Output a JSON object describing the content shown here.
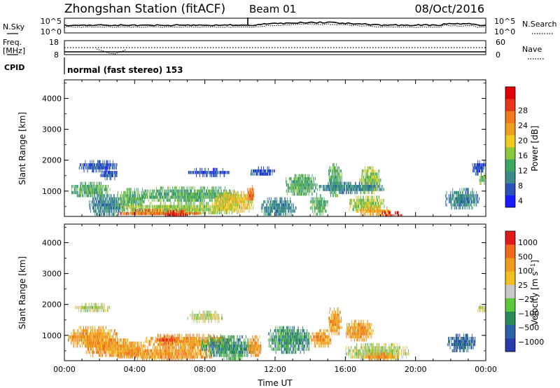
{
  "header": {
    "station": "Zhongshan Station (fitACF)",
    "beam": "Beam 01",
    "date": "08/Oct/2016"
  },
  "nsky_panel": {
    "label": "N.Sky",
    "ticks_left": [
      "10^5",
      "10^0"
    ],
    "ticks_right": [
      "10^5",
      "10^0"
    ],
    "right_label": "N.Search"
  },
  "freq_panel": {
    "label_top": "Freq.",
    "label_unit": "[MHz]",
    "ticks_left": [
      "18",
      "8"
    ],
    "ticks_right": [
      "60",
      "0"
    ],
    "right_label": "Nave"
  },
  "cpid_panel": {
    "label": "CPID",
    "mode_text": "normal (fast stereo) 153"
  },
  "chart_data": [
    {
      "type": "heatmap",
      "name": "power",
      "ylabel": "Slant Range [km]",
      "yticks": [
        1000,
        2000,
        3000,
        4000
      ],
      "ylim": [
        180,
        4600
      ],
      "xlim": [
        0,
        24
      ],
      "colorbar": {
        "label": "Power [dB]",
        "ticks": [
          "4",
          "8",
          "12",
          "16",
          "20",
          "24",
          "28"
        ],
        "colors": [
          "#1a1aff",
          "#2a52b8",
          "#3b8a8a",
          "#3aa860",
          "#8cc83c",
          "#f0cc20",
          "#f0a020",
          "#f07a1a",
          "#e8361a",
          "#e00000"
        ]
      },
      "regions": [
        {
          "t": [
            0.8,
            3.0
          ],
          "r": [
            1700,
            2000
          ],
          "level": 1
        },
        {
          "t": [
            2.0,
            3.0
          ],
          "r": [
            1450,
            1750
          ],
          "level": 1
        },
        {
          "t": [
            0.4,
            2.6
          ],
          "r": [
            850,
            1300
          ],
          "level": 3
        },
        {
          "t": [
            1.4,
            3.4
          ],
          "r": [
            250,
            900
          ],
          "level": 2
        },
        {
          "t": [
            3.0,
            4.6
          ],
          "r": [
            500,
            1100
          ],
          "level": 3
        },
        {
          "t": [
            3.2,
            10.0
          ],
          "r": [
            280,
            650
          ],
          "level": 4
        },
        {
          "t": [
            3.0,
            7.8
          ],
          "r": [
            250,
            420
          ],
          "level": 7
        },
        {
          "t": [
            5.6,
            7.0
          ],
          "r": [
            250,
            380
          ],
          "level": 9
        },
        {
          "t": [
            4.4,
            9.8
          ],
          "r": [
            700,
            1150
          ],
          "level": 3
        },
        {
          "t": [
            8.4,
            10.8
          ],
          "r": [
            400,
            1000
          ],
          "level": 5
        },
        {
          "t": [
            10.4,
            10.8
          ],
          "r": [
            700,
            1200
          ],
          "level": 7
        },
        {
          "t": [
            7.0,
            9.4
          ],
          "r": [
            1550,
            1750
          ],
          "level": 1
        },
        {
          "t": [
            10.6,
            12.0
          ],
          "r": [
            1550,
            1800
          ],
          "level": 1
        },
        {
          "t": [
            11.2,
            13.2
          ],
          "r": [
            250,
            800
          ],
          "level": 2
        },
        {
          "t": [
            12.6,
            14.4
          ],
          "r": [
            900,
            1550
          ],
          "level": 3
        },
        {
          "t": [
            14.0,
            15.0
          ],
          "r": [
            300,
            900
          ],
          "level": 3
        },
        {
          "t": [
            15.0,
            15.8
          ],
          "r": [
            900,
            1900
          ],
          "level": 3
        },
        {
          "t": [
            16.8,
            18.0
          ],
          "r": [
            1000,
            1800
          ],
          "level": 4
        },
        {
          "t": [
            14.4,
            18.2
          ],
          "r": [
            1000,
            1300
          ],
          "level": 2
        },
        {
          "t": [
            16.2,
            18.2
          ],
          "r": [
            380,
            850
          ],
          "level": 4
        },
        {
          "t": [
            16.6,
            18.6
          ],
          "r": [
            280,
            500
          ],
          "level": 6
        },
        {
          "t": [
            17.6,
            19.6
          ],
          "r": [
            250,
            350
          ],
          "level": 9
        },
        {
          "t": [
            21.7,
            23.6
          ],
          "r": [
            500,
            1100
          ],
          "level": 2
        },
        {
          "t": [
            23.2,
            24.0
          ],
          "r": [
            1600,
            2000
          ],
          "level": 1
        },
        {
          "t": [
            23.6,
            24.0
          ],
          "r": [
            1300,
            1600
          ],
          "level": 4
        }
      ]
    },
    {
      "type": "heatmap",
      "name": "velocity",
      "ylabel": "Slant Range [km]",
      "yticks": [
        1000,
        2000,
        3000,
        4000
      ],
      "ylim": [
        180,
        4600
      ],
      "xlabel": "Time UT",
      "xticks": [
        "00:00",
        "04:00",
        "08:00",
        "12:00",
        "16:00",
        "20:00",
        "00:00"
      ],
      "xlim": [
        0,
        24
      ],
      "colorbar": {
        "label": "Velocity [m s^-1]",
        "ticks": [
          "1000",
          "500",
          "100",
          "25",
          "-25",
          "-100",
          "-500",
          "-1000"
        ],
        "colors": [
          "#2a3aaa",
          "#2a62a8",
          "#2a8a5a",
          "#5ac83a",
          "#c8c8c8",
          "#f0c020",
          "#f09a20",
          "#f06a1a",
          "#e01a1a"
        ]
      },
      "regions": [
        {
          "t": [
            0.6,
            2.6
          ],
          "r": [
            1800,
            2050
          ],
          "level": 4
        },
        {
          "t": [
            0.2,
            3.0
          ],
          "r": [
            650,
            1300
          ],
          "level": 6
        },
        {
          "t": [
            1.2,
            4.6
          ],
          "r": [
            350,
            900
          ],
          "level": 6
        },
        {
          "t": [
            3.0,
            8.4
          ],
          "r": [
            250,
            650
          ],
          "level": 6
        },
        {
          "t": [
            4.6,
            9.4
          ],
          "r": [
            650,
            1050
          ],
          "level": 6
        },
        {
          "t": [
            5.2,
            6.4
          ],
          "r": [
            800,
            1000
          ],
          "level": 7
        },
        {
          "t": [
            7.8,
            10.8
          ],
          "r": [
            350,
            1000
          ],
          "level": 2
        },
        {
          "t": [
            9.0,
            10.2
          ],
          "r": [
            250,
            500
          ],
          "level": 3
        },
        {
          "t": [
            10.4,
            11.2
          ],
          "r": [
            400,
            1000
          ],
          "level": 6
        },
        {
          "t": [
            7.0,
            9.0
          ],
          "r": [
            1500,
            1800
          ],
          "level": 4
        },
        {
          "t": [
            11.6,
            14.0
          ],
          "r": [
            500,
            1300
          ],
          "level": 2
        },
        {
          "t": [
            14.0,
            15.2
          ],
          "r": [
            700,
            1200
          ],
          "level": 6
        },
        {
          "t": [
            15.0,
            15.8
          ],
          "r": [
            1100,
            1900
          ],
          "level": 6
        },
        {
          "t": [
            16.0,
            17.6
          ],
          "r": [
            900,
            1500
          ],
          "level": 6
        },
        {
          "t": [
            16.0,
            19.6
          ],
          "r": [
            250,
            750
          ],
          "level": 4
        },
        {
          "t": [
            17.0,
            19.0
          ],
          "r": [
            250,
            450
          ],
          "level": 6
        },
        {
          "t": [
            21.8,
            23.4
          ],
          "r": [
            550,
            1050
          ],
          "level": 1
        },
        {
          "t": [
            23.5,
            24.0
          ],
          "r": [
            1800,
            2050
          ],
          "level": 4
        }
      ]
    }
  ]
}
